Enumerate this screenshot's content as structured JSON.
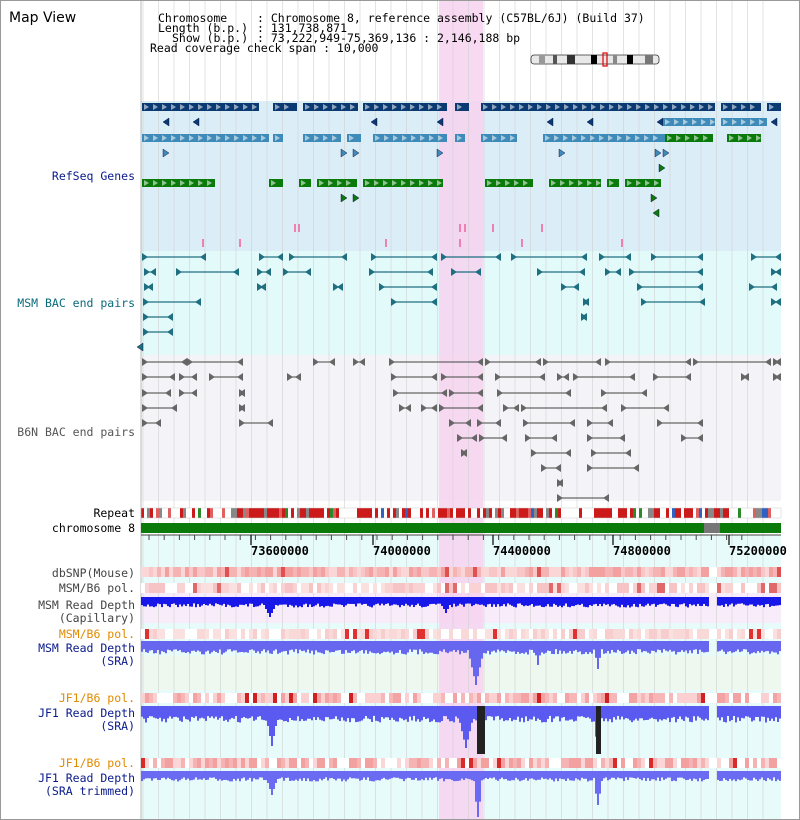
{
  "header": {
    "title": "Map View",
    "chromosome_key": "Chromosome",
    "chromosome_val": ": Chromosome 8, reference assembly (C57BL/6J) (Build 37)",
    "length_key": "Length (b.p.)",
    "length_val": ": 131,738,871",
    "show_key": "Show (b.p.)",
    "show_val": ": 73,222,949-75,369,136 : 2,146,188 bp",
    "span_text": "Read coverage check span : 10,000"
  },
  "tracks": {
    "refseq": "RefSeq Genes",
    "msm_bac": "MSM BAC end pairs",
    "b6n_bac": "B6N BAC end pairs",
    "repeat": "Repeat",
    "chromosome": "chromosome 8",
    "dbsnp": "dbSNP(Mouse)",
    "msm_b6_pol": "MSM/B6 pol.",
    "msm_read_depth_cap_1": "MSM Read Depth",
    "msm_read_depth_cap_2": "(Capillary)",
    "msm_b6_pol_2": "MSM/B6 pol.",
    "msm_read_depth_sra_1": "MSM Read Depth",
    "msm_read_depth_sra_2": "(SRA)",
    "jf1_b6_pol": "JF1/B6 pol.",
    "jf1_read_depth_1": "JF1 Read Depth",
    "jf1_read_depth_2": "(SRA)",
    "jf1_b6_pol_2": "JF1/B6 pol.",
    "jf1_trim_1": "JF1 Read Depth",
    "jf1_trim_2": "(SRA trimmed)"
  },
  "axis": {
    "ticks": [
      "73600000",
      "74000000",
      "74400000",
      "74800000",
      "75200000"
    ]
  },
  "colors": {
    "refseq_bg": "#dbeef8",
    "msm_bac_bg": "#e3fafa",
    "b6n_bac_bg": "#f4f4f8",
    "highlight": "#f7d2f0",
    "navy": "#0b3a73",
    "steel": "#3e8ab8",
    "green": "#0a7a0a",
    "teal": "#1e6f80",
    "grey": "#666666",
    "label_navy": "#0a1a8c",
    "label_teal": "#0a6a7a",
    "label_orange": "#e08a00",
    "depth_blue": "#1818e8"
  },
  "icons": [
    "ideogram-icon",
    "gene-arrow-icon"
  ]
}
